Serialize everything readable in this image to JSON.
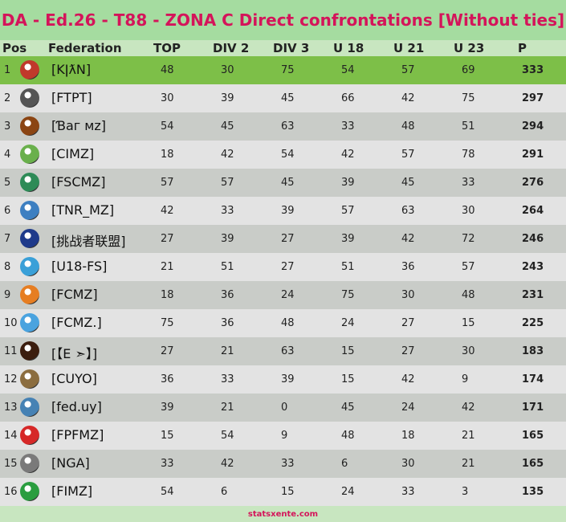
{
  "title": "DA - Ed.26 - T88 - ZONA C Direct confrontations [Without ties]",
  "headers": {
    "pos": "Pos",
    "federation": "Federation",
    "top": "TOP",
    "div2": "DIV 2",
    "div3": "DIV 3",
    "u18": "U 18",
    "u21": "U 21",
    "u23": "U 23",
    "p": "P"
  },
  "rows": [
    {
      "pos": "1",
      "fed": "[KǀƛN]",
      "top": "48",
      "div2": "30",
      "div3": "75",
      "u18": "54",
      "u21": "57",
      "u23": "69",
      "p": "333",
      "logo": "red-crest-logo"
    },
    {
      "pos": "2",
      "fed": "[FTPT]",
      "top": "30",
      "div2": "39",
      "div3": "45",
      "u18": "66",
      "u21": "42",
      "u23": "75",
      "p": "297",
      "logo": "corinthians-crest-logo"
    },
    {
      "pos": "3",
      "fed": "[Ɓaг мz]",
      "top": "54",
      "div2": "45",
      "div3": "63",
      "u18": "33",
      "u21": "48",
      "u23": "51",
      "p": "294",
      "logo": "shield-crest-logo"
    },
    {
      "pos": "4",
      "fed": "[CIMZ]",
      "top": "18",
      "div2": "42",
      "div3": "54",
      "u18": "42",
      "u21": "57",
      "u23": "78",
      "p": "291",
      "logo": "green-globe-logo"
    },
    {
      "pos": "5",
      "fed": "[FSCMZ]",
      "top": "57",
      "div2": "57",
      "div3": "45",
      "u18": "39",
      "u21": "45",
      "u23": "33",
      "p": "276",
      "logo": "green-red-shield-logo"
    },
    {
      "pos": "6",
      "fed": "[TNR_MZ]",
      "top": "42",
      "div2": "33",
      "div3": "39",
      "u18": "57",
      "u21": "63",
      "u23": "30",
      "p": "264",
      "logo": "tnr-circle-logo"
    },
    {
      "pos": "7",
      "fed": "[挑战者联盟]",
      "top": "27",
      "div2": "39",
      "div3": "27",
      "u18": "39",
      "u21": "42",
      "u23": "72",
      "p": "246",
      "logo": "blue-banner-logo"
    },
    {
      "pos": "8",
      "fed": "[U18-FS]",
      "top": "21",
      "div2": "51",
      "div3": "27",
      "u18": "51",
      "u21": "36",
      "u23": "57",
      "p": "243",
      "logo": "blue-player-logo"
    },
    {
      "pos": "9",
      "fed": "[FCMZ]",
      "top": "18",
      "div2": "36",
      "div3": "24",
      "u18": "75",
      "u21": "30",
      "u23": "48",
      "p": "231",
      "logo": "orange-shield-logo"
    },
    {
      "pos": "10",
      "fed": "[FCMZ.]",
      "top": "75",
      "div2": "36",
      "div3": "48",
      "u18": "24",
      "u21": "27",
      "u23": "15",
      "p": "225",
      "logo": "blue-wing-logo"
    },
    {
      "pos": "11",
      "fed": "[【E ➣】]",
      "top": "27",
      "div2": "21",
      "div3": "63",
      "u18": "15",
      "u21": "27",
      "u23": "30",
      "p": "183",
      "logo": "dark-round-logo"
    },
    {
      "pos": "12",
      "fed": "[CUYO]",
      "top": "36",
      "div2": "33",
      "div3": "39",
      "u18": "15",
      "u21": "42",
      "u23": "9",
      "p": "174",
      "logo": "brown-lion-logo"
    },
    {
      "pos": "13",
      "fed": "[fed.uy]",
      "top": "39",
      "div2": "21",
      "div3": "0",
      "u18": "45",
      "u21": "24",
      "u23": "42",
      "p": "171",
      "logo": "uy-ball-logo"
    },
    {
      "pos": "14",
      "fed": "[FPFMZ]",
      "top": "15",
      "div2": "54",
      "div3": "9",
      "u18": "48",
      "u21": "18",
      "u23": "21",
      "p": "165",
      "logo": "peru-flag-logo"
    },
    {
      "pos": "15",
      "fed": "[NGA]",
      "top": "33",
      "div2": "42",
      "div3": "33",
      "u18": "6",
      "u21": "30",
      "u23": "21",
      "p": "165",
      "logo": "nga-ball-logo"
    },
    {
      "pos": "16",
      "fed": "[FIMZ]",
      "top": "54",
      "div2": "6",
      "div3": "15",
      "u18": "24",
      "u21": "33",
      "u23": "3",
      "p": "135",
      "logo": "italy-crest-logo"
    }
  ],
  "footer": "statsxente.com",
  "colors": {
    "title": "#d4145a",
    "title_bg": "#a5dca0",
    "highlight_row": "#7dbf48",
    "row_light": "#e3e3e3",
    "row_dark": "#c9ccc8"
  }
}
